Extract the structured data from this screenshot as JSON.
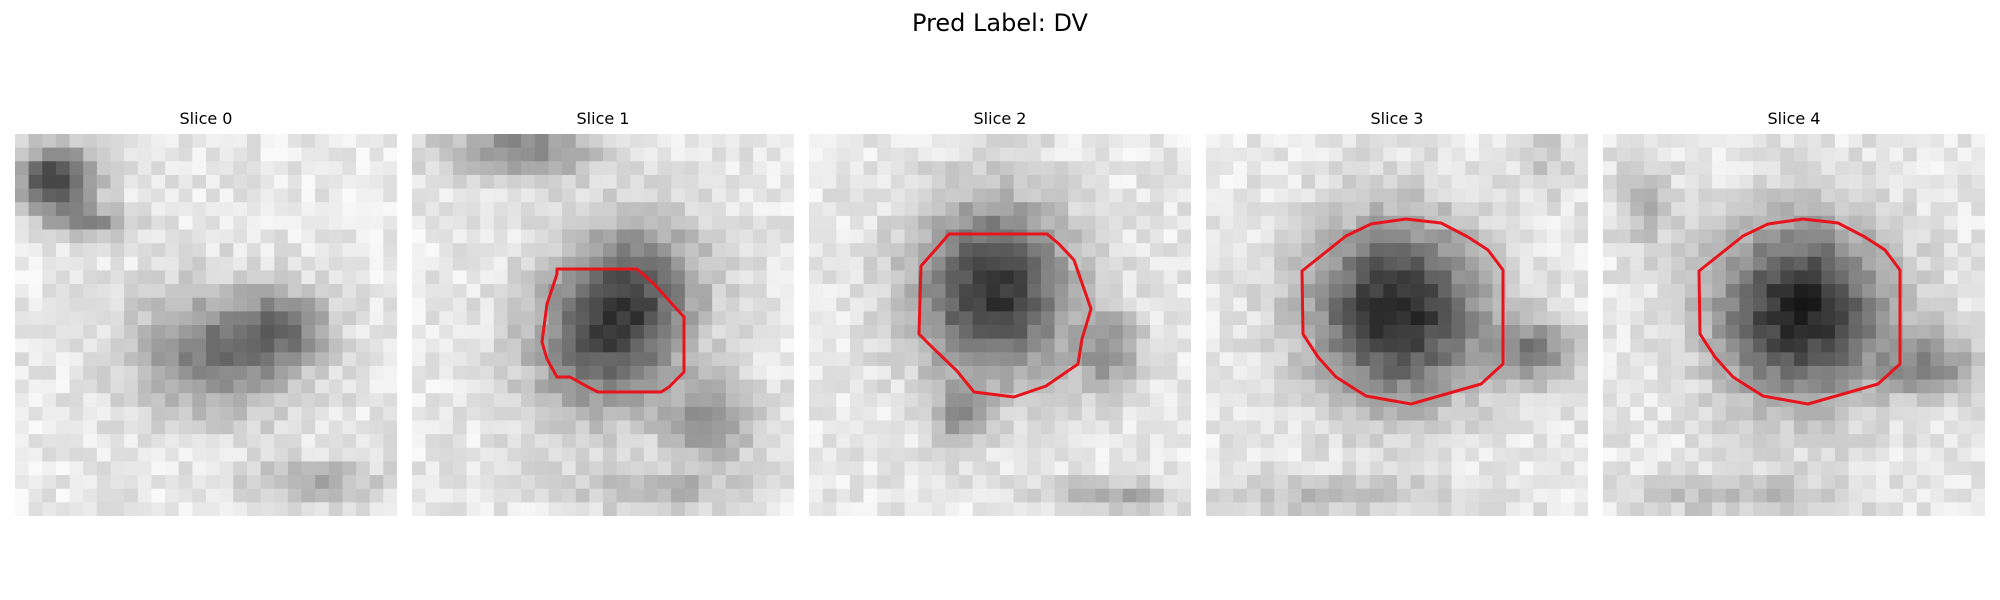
{
  "figure": {
    "title": "Pred Label: DV"
  },
  "panels": [
    {
      "title": "Slice 0",
      "has_contour": false
    },
    {
      "title": "Slice 1",
      "has_contour": true
    },
    {
      "title": "Slice 2",
      "has_contour": true
    },
    {
      "title": "Slice 3",
      "has_contour": true
    },
    {
      "title": "Slice 4",
      "has_contour": true
    }
  ],
  "colors": {
    "contour": "#e8141c",
    "background": "#ffffff"
  }
}
